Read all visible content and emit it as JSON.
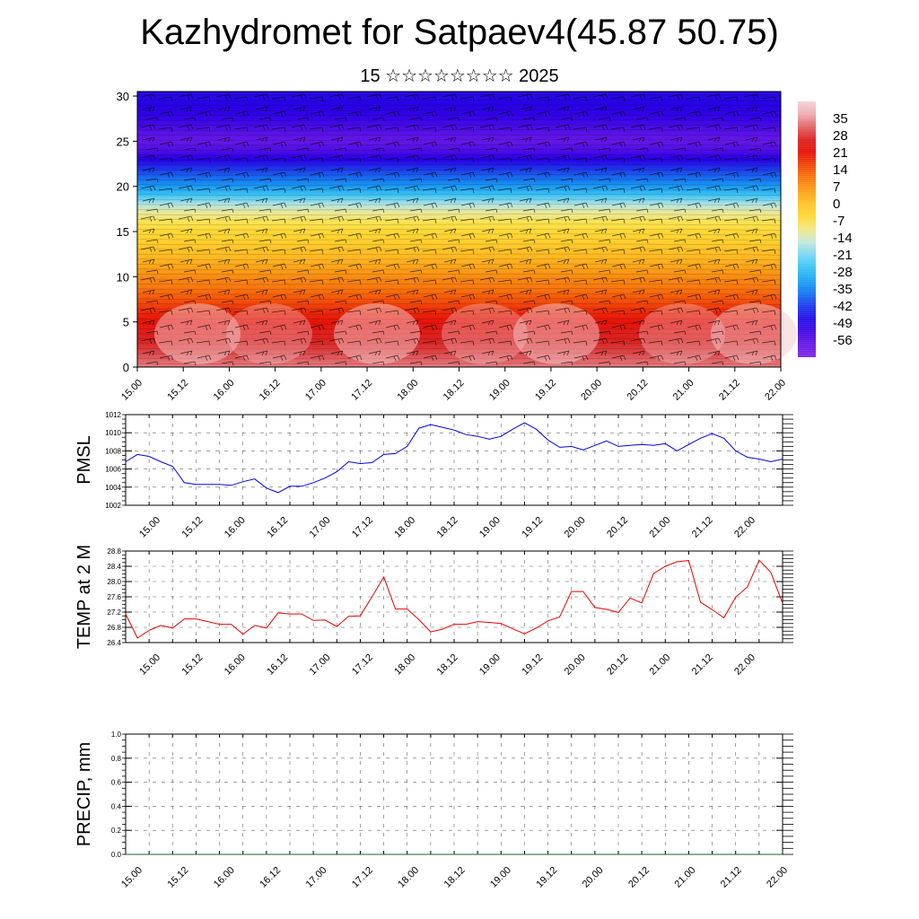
{
  "title": "Kazhydromet for Satpaev4(45.87 50.75)",
  "subtitle": "15 ☆☆☆☆☆☆☆☆ 2025",
  "colors": {
    "pmsl_line": "#0000ee",
    "temp_line": "#ee0000",
    "axis": "#000000"
  },
  "chart_data": [
    {
      "type": "heatmap",
      "title": "",
      "x_tick_labels": [
        "15.00",
        "15.12",
        "16.00",
        "16.12",
        "17.00",
        "17.12",
        "18.00",
        "18.12",
        "19.00",
        "19.12",
        "20.00",
        "20.12",
        "21.00",
        "21.12",
        "22.00"
      ],
      "y_tick_labels": [
        "0",
        "5",
        "10",
        "15",
        "20",
        "25",
        "30"
      ],
      "ylim": [
        0,
        30.5
      ],
      "colorbar": {
        "labels": [
          "35",
          "28",
          "21",
          "14",
          "7",
          "0",
          "-7",
          "-14",
          "-21",
          "-28",
          "-35",
          "-42",
          "-49",
          "-56"
        ],
        "range": [
          -63,
          42
        ]
      },
      "profile_by_level": [
        [
          0,
          33
        ],
        [
          1,
          31
        ],
        [
          2,
          29
        ],
        [
          3,
          26
        ],
        [
          4,
          24
        ],
        [
          5,
          21
        ],
        [
          6,
          19
        ],
        [
          7,
          16
        ],
        [
          8,
          13
        ],
        [
          9,
          10
        ],
        [
          10,
          8
        ],
        [
          11,
          5
        ],
        [
          12,
          2
        ],
        [
          13,
          0
        ],
        [
          14,
          -3
        ],
        [
          15,
          -5
        ],
        [
          16,
          -8
        ],
        [
          17,
          -11
        ],
        [
          18,
          -17
        ],
        [
          19,
          -26
        ],
        [
          20,
          -33
        ],
        [
          21,
          -38
        ],
        [
          22,
          -43
        ],
        [
          23,
          -49
        ],
        [
          24,
          -54
        ],
        [
          25,
          -57
        ],
        [
          26,
          -55
        ],
        [
          27,
          -52
        ],
        [
          28,
          -50
        ],
        [
          29,
          -49
        ],
        [
          30,
          -48
        ],
        [
          30.5,
          -48
        ]
      ],
      "wind_barbs": true
    },
    {
      "type": "line",
      "ylabel": "PMSL",
      "ylim": [
        1002,
        1012
      ],
      "y_tick_labels": [
        "1002",
        "1004",
        "1006",
        "1008",
        "1010",
        "1012"
      ],
      "x_tick_labels": [
        "15.00",
        "15.12",
        "16.00",
        "16.12",
        "17.00",
        "17.12",
        "18.00",
        "18.12",
        "19.00",
        "19.12",
        "20.00",
        "20.12",
        "21.00",
        "21.12",
        "22.00"
      ],
      "series": [
        {
          "x": [
            0,
            1.5,
            3,
            4.5,
            6,
            7.5,
            9,
            10.5,
            12,
            13.5,
            15,
            16.5,
            18,
            19.5,
            21,
            22.5,
            24,
            25.5,
            27,
            28.5,
            30,
            31.5,
            33,
            34.5,
            36,
            37.5,
            39,
            40.5,
            42,
            43.5,
            45,
            46.5,
            48,
            49.5,
            51,
            52.5,
            54,
            55.5,
            57,
            58.5,
            60,
            61.5,
            63,
            64.5,
            66,
            67.5,
            69,
            70.5,
            72,
            73.5,
            75,
            76.5,
            78,
            79.5,
            81,
            82.5,
            84
          ],
          "values": [
            1006.8,
            1007.6,
            1007.4,
            1006.8,
            1006.3,
            1004.5,
            1004.3,
            1004.3,
            1004.3,
            1004.2,
            1004.6,
            1004.9,
            1003.9,
            1003.4,
            1004.1,
            1004.1,
            1004.5,
            1005.0,
            1005.7,
            1006.8,
            1006.6,
            1006.7,
            1007.6,
            1007.7,
            1008.5,
            1010.5,
            1010.9,
            1010.6,
            1010.3,
            1009.8,
            1009.6,
            1009.3,
            1009.6,
            1010.4,
            1011.1,
            1010.4,
            1009.2,
            1008.4,
            1008.5,
            1008.1,
            1008.6,
            1009.1,
            1008.5,
            1008.6,
            1008.7,
            1008.6,
            1008.8,
            1008.0,
            1008.7,
            1009.4,
            1009.9,
            1009.4,
            1008.0,
            1007.3,
            1007.1,
            1006.8,
            1007.1
          ]
        }
      ]
    },
    {
      "type": "line",
      "ylabel": "TEMP at 2 M",
      "ylim": [
        26.4,
        28.8
      ],
      "y_tick_labels": [
        "26.4",
        "26.8",
        "27.2",
        "27.6",
        "28.0",
        "28.4",
        "28.8"
      ],
      "x_tick_labels": [
        "15.00",
        "15.12",
        "16.00",
        "16.12",
        "17.00",
        "17.12",
        "18.00",
        "18.12",
        "19.00",
        "19.12",
        "20.00",
        "20.12",
        "21.00",
        "21.12",
        "22.00"
      ],
      "series": [
        {
          "x": [
            0,
            1.5,
            3,
            4.5,
            6,
            7.5,
            9,
            10.5,
            12,
            13.5,
            15,
            16.5,
            18,
            19.5,
            21,
            22.5,
            24,
            25.5,
            27,
            28.5,
            30,
            31.5,
            33,
            34.5,
            36,
            37.5,
            39,
            40.5,
            42,
            43.5,
            45,
            46.5,
            48,
            49.5,
            51,
            52.5,
            54,
            55.5,
            57,
            58.5,
            60,
            61.5,
            63,
            64.5,
            66,
            67.5,
            69,
            70.5,
            72,
            73.5,
            75,
            76.5,
            78,
            79.5,
            81,
            82.5,
            84
          ],
          "values": [
            27.15,
            26.52,
            26.72,
            26.85,
            26.78,
            27.02,
            27.02,
            26.95,
            26.88,
            26.88,
            26.62,
            26.85,
            26.78,
            27.18,
            27.15,
            27.15,
            26.98,
            26.99,
            26.82,
            27.09,
            27.1,
            27.6,
            28.12,
            27.28,
            27.28,
            27.0,
            26.68,
            26.75,
            26.88,
            26.88,
            26.95,
            26.93,
            26.9,
            26.76,
            26.63,
            26.78,
            26.97,
            27.07,
            27.74,
            27.74,
            27.32,
            27.27,
            27.19,
            27.57,
            27.44,
            28.21,
            28.4,
            28.52,
            28.55,
            27.46,
            27.26,
            27.05,
            27.59,
            27.86,
            28.56,
            28.24,
            27.43
          ]
        }
      ]
    },
    {
      "type": "line",
      "ylabel": "PRECIP, mm",
      "ylim": [
        0,
        1
      ],
      "y_tick_labels": [
        "0.0",
        "0.2",
        "0.4",
        "0.6",
        "0.8",
        "1.0"
      ],
      "x_tick_labels": [
        "15.00",
        "15.12",
        "16.00",
        "16.12",
        "17.00",
        "17.12",
        "18.00",
        "18.12",
        "19.00",
        "19.12",
        "20.00",
        "20.12",
        "21.00",
        "21.12",
        "22.00"
      ],
      "series": [
        {
          "x": [
            0,
            84
          ],
          "values": [
            0,
            0
          ]
        }
      ]
    }
  ]
}
